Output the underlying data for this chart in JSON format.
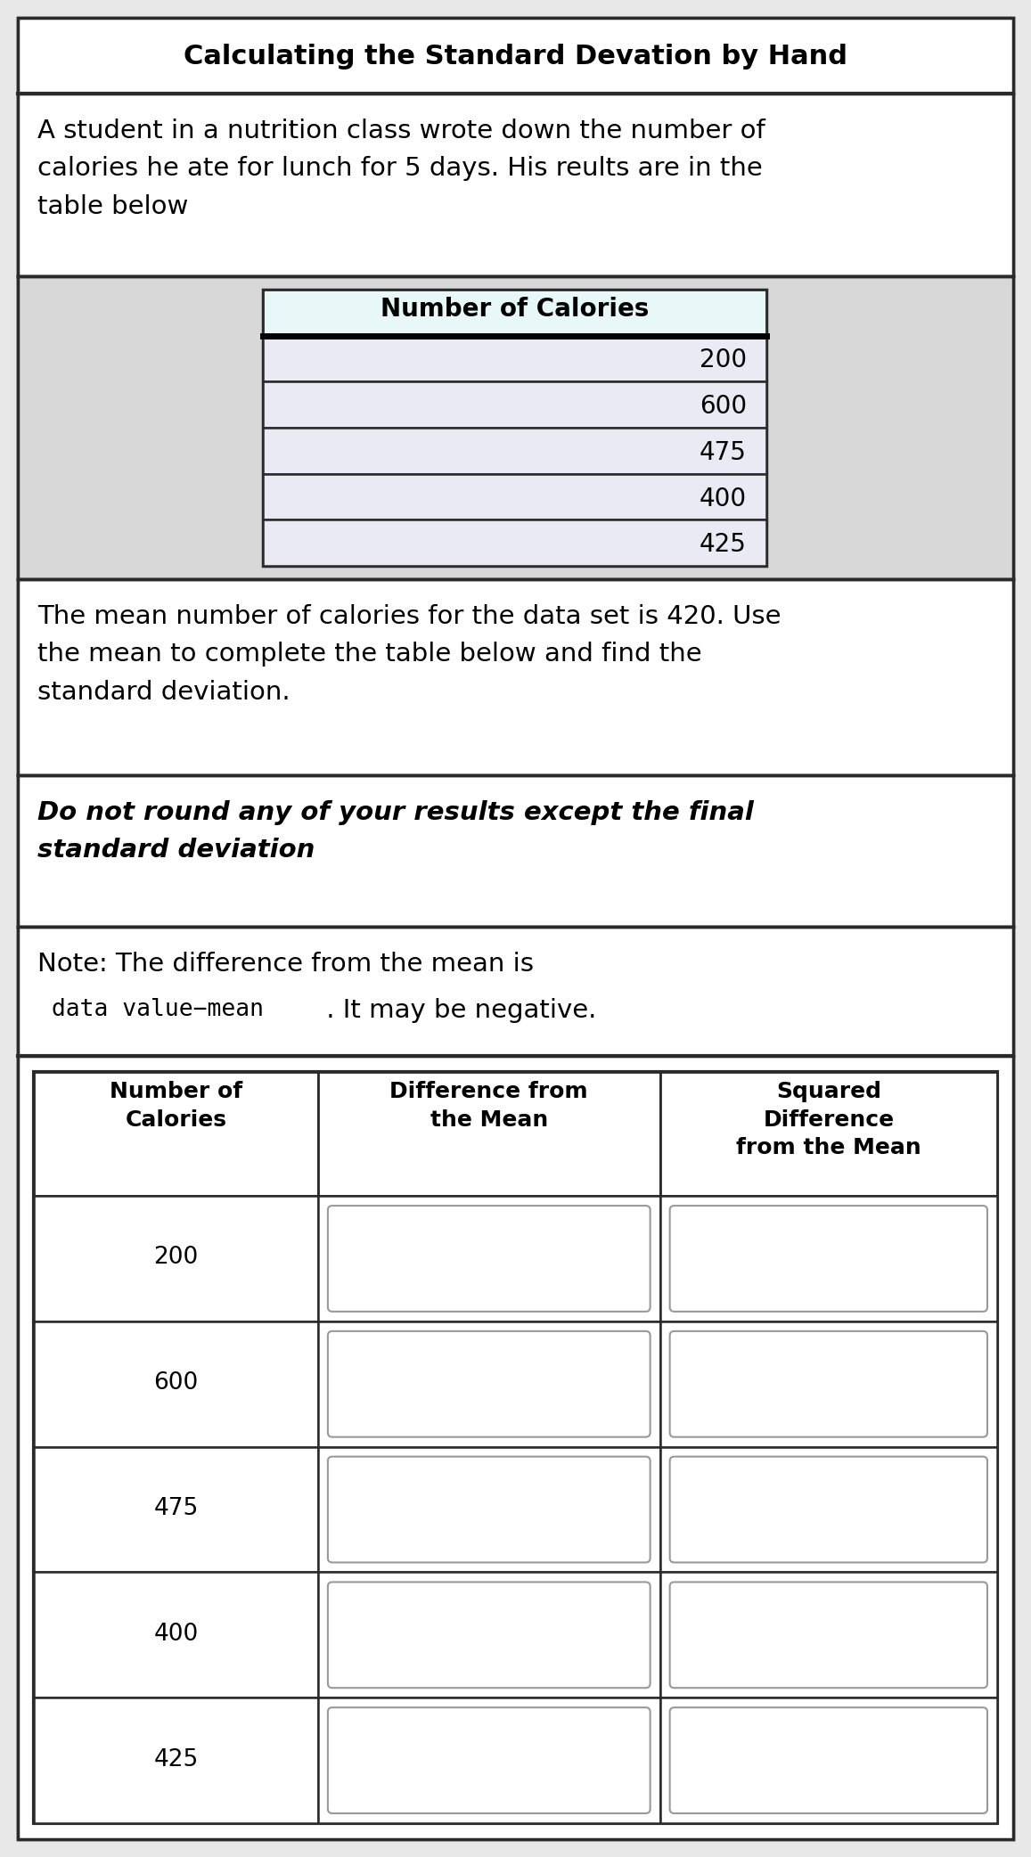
{
  "title": "Calculating the Standard Devation by Hand",
  "intro_text": "A student in a nutrition class wrote down the number of\ncalories he ate for lunch for 5 days. His reults are in the\ntable below",
  "first_table_header": "Number of Calories",
  "calories": [
    200,
    600,
    475,
    400,
    425
  ],
  "mean_text": "The mean number of calories for the data set is 420. Use\nthe mean to complete the table below and find the\nstandard deviation.",
  "bold_italic_text": "Do not round any of your results except the final\nstandard deviation",
  "note_line1": "Note: The difference from the mean is",
  "note_mono": "data value−mean",
  "note_after": " . It may be negative.",
  "second_table_headers": [
    "Number of\nCalories",
    "Difference from\nthe Mean",
    "Squared\nDifference\nfrom the Mean"
  ],
  "bg_color": "#e8e8e8",
  "white": "#ffffff",
  "light_lavender": "#eaeaf5",
  "light_cyan_header": "#e8f8f8",
  "border_dark": "#2a2a2a",
  "border_gray": "#999999",
  "title_bg": "#e0e0e0",
  "section_bg": "#d8d8d8"
}
